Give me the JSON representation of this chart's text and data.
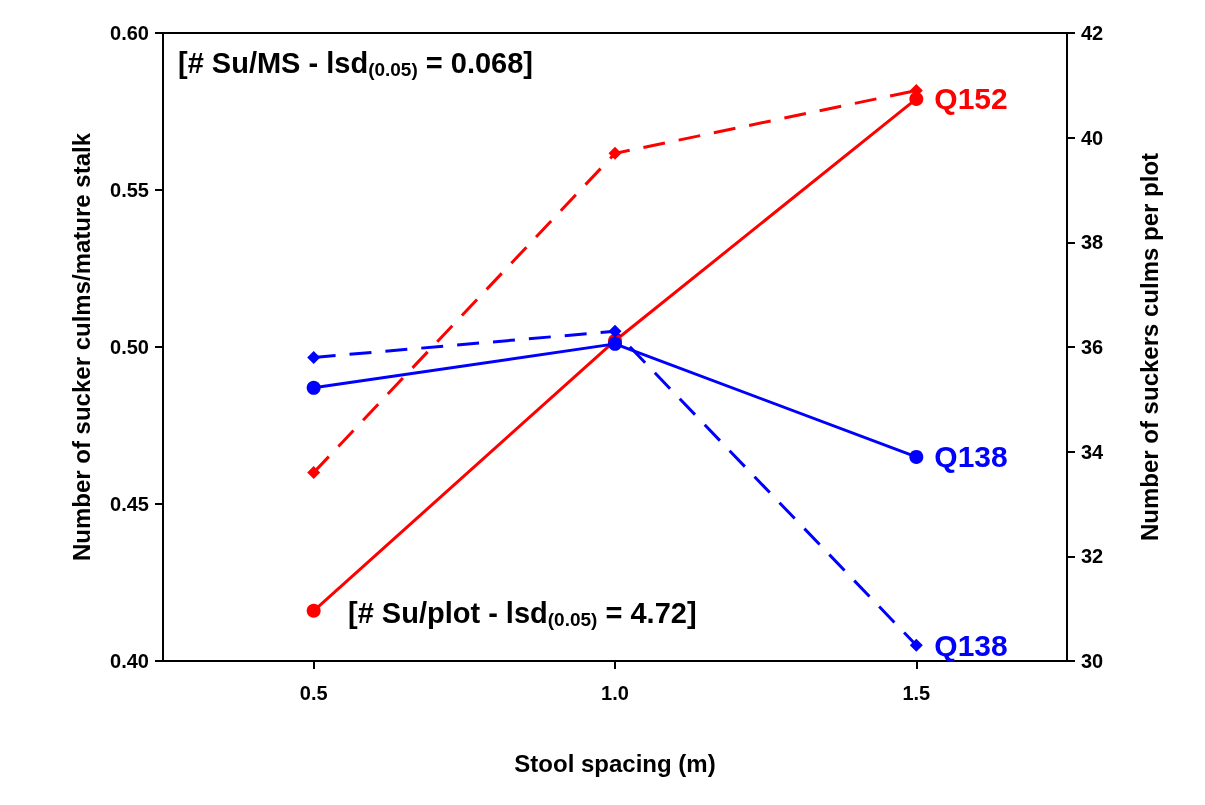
{
  "chart_data": {
    "type": "line",
    "xlabel": "Stool spacing (m)",
    "ylabel": "Number of sucker culms/mature stalk",
    "y2label": "Number of suckers culms per plot",
    "annotations": [
      "[# Su/MS - lsd$_{(0.05)}$ = 0.068]",
      "[# Su/plot - lsd$_{(0.05)}$ = 4.72]"
    ],
    "x": [
      0.5,
      1.0,
      1.5
    ],
    "xlim": [
      0.25,
      1.75
    ],
    "xticks": [
      {
        "value": 0.5,
        "label": "0.5"
      },
      {
        "value": 1.0,
        "label": "1.0"
      },
      {
        "value": 1.5,
        "label": "1.5"
      }
    ],
    "ylim": [
      0.4,
      0.6
    ],
    "yticks": [
      {
        "value": 0.4,
        "label": "0.40"
      },
      {
        "value": 0.45,
        "label": "0.45"
      },
      {
        "value": 0.5,
        "label": "0.50"
      },
      {
        "value": 0.55,
        "label": "0.55"
      },
      {
        "value": 0.6,
        "label": "0.60"
      }
    ],
    "y2lim": [
      30,
      42
    ],
    "y2ticks": [
      30,
      32,
      34,
      36,
      38,
      40,
      42
    ],
    "grid": false,
    "legend": false,
    "series": [
      {
        "name": "Q152",
        "color": "#ff0000",
        "marker": "circle",
        "line_style": "solid",
        "values": [
          0.416,
          0.502,
          0.579
        ]
      },
      {
        "name": "Q138",
        "color": "#0000ff",
        "marker": "circle",
        "line_style": "solid",
        "values": [
          0.487,
          0.501,
          0.465
        ]
      },
      {
        "color": "#ff0000",
        "marker": "diamond",
        "line_style": "dashed",
        "axis": "y2",
        "values": [
          33.6,
          39.7,
          40.9
        ]
      },
      {
        "name": "Q138",
        "color": "#0000ff",
        "marker": "diamond",
        "line_style": "dashed",
        "axis": "y2",
        "values": [
          35.8,
          36.3,
          30.3
        ]
      }
    ]
  }
}
